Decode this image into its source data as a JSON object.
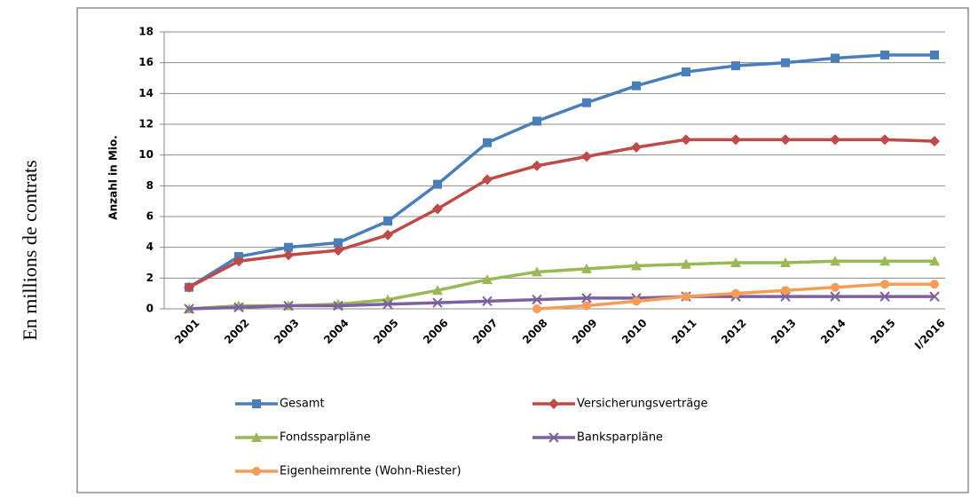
{
  "side_label": "En millions de contrats",
  "chart_data": {
    "type": "line",
    "y_label": "Anzahl in Mio.",
    "categories": [
      "2001",
      "2002",
      "2003",
      "2004",
      "2005",
      "2006",
      "2007",
      "2008",
      "2009",
      "2010",
      "2011",
      "2012",
      "2013",
      "2014",
      "2015",
      "I/2016"
    ],
    "series": [
      {
        "name": "Gesamt",
        "color": "#4a7ebb",
        "marker": "square",
        "values": [
          1.4,
          3.4,
          4.0,
          4.3,
          5.7,
          8.1,
          10.8,
          12.2,
          13.4,
          14.5,
          15.4,
          15.8,
          16.0,
          16.3,
          16.5,
          16.5
        ]
      },
      {
        "name": "Versicherungsverträge",
        "color": "#be4b48",
        "marker": "diamond",
        "values": [
          1.4,
          3.1,
          3.5,
          3.8,
          4.8,
          6.5,
          8.4,
          9.3,
          9.9,
          10.5,
          11.0,
          11.0,
          11.0,
          11.0,
          11.0,
          10.9
        ]
      },
      {
        "name": "Fondssparpläne",
        "color": "#98b954",
        "marker": "triangle",
        "values": [
          0,
          0.2,
          0.2,
          0.3,
          0.6,
          1.2,
          1.9,
          2.4,
          2.6,
          2.8,
          2.9,
          3.0,
          3.0,
          3.1,
          3.1,
          3.1
        ]
      },
      {
        "name": "Banksparpläne",
        "color": "#7d60a0",
        "marker": "cross",
        "values": [
          0,
          0.1,
          0.2,
          0.2,
          0.3,
          0.4,
          0.5,
          0.6,
          0.7,
          0.7,
          0.8,
          0.8,
          0.8,
          0.8,
          0.8,
          0.8
        ]
      },
      {
        "name": "Eigenheimrente (Wohn-Riester)",
        "color": "#f59d56",
        "marker": "circle",
        "values": [
          null,
          null,
          null,
          null,
          null,
          null,
          null,
          0,
          0.2,
          0.5,
          0.8,
          1.0,
          1.2,
          1.4,
          1.6,
          1.6
        ]
      }
    ],
    "ylim": [
      0,
      18
    ],
    "yticks": [
      0,
      2,
      4,
      6,
      8,
      10,
      12,
      14,
      16,
      18
    ],
    "grid": true
  }
}
